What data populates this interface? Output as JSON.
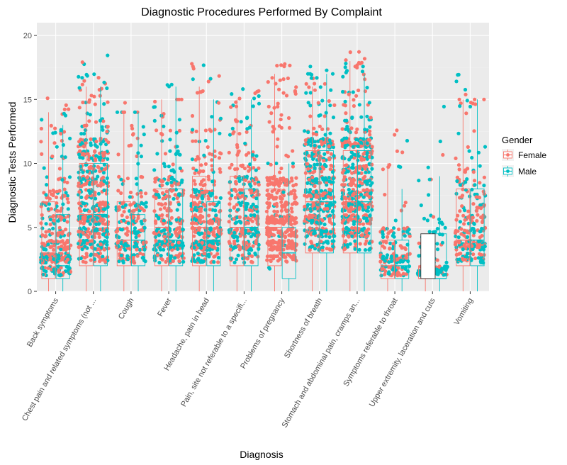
{
  "chart_data": {
    "type": "scatter",
    "subtype": "jittered points with boxplots",
    "title": "Diagnostic Procedures Performed By Complaint",
    "xlabel": "Diagnosis",
    "ylabel": "Diagnostic Tests Performed",
    "ylim": [
      0,
      21
    ],
    "yticks": [
      0,
      5,
      10,
      15,
      20
    ],
    "grid": true,
    "legend": {
      "title": "Gender",
      "placement": "right",
      "entries": [
        {
          "name": "Female",
          "color": "#F8766D"
        },
        {
          "name": "Male",
          "color": "#00BFC4"
        }
      ]
    },
    "categories": [
      "Back symptoms",
      "Chest pain and related symptoms (not ...",
      "Cough",
      "Fever",
      "Headache, pain in head",
      "Pain, site not referable to a specifi...",
      "Problems of pregnancy",
      "Shortness of breath",
      "Stomach and abdominal pain, cramps an...",
      "Symptoms referable to throat",
      "Upper extremity, laceration and cuts",
      "Vomiting"
    ],
    "series": [
      {
        "name": "Female",
        "color": "#F8766D",
        "box": [
          {
            "q1": 1,
            "median": 3,
            "q3": 7,
            "lo": 0,
            "hi": 14,
            "max": 16
          },
          {
            "q1": 2,
            "median": 6,
            "q3": 10,
            "lo": 0,
            "hi": 16,
            "max": 18
          },
          {
            "q1": 2,
            "median": 4,
            "q3": 7,
            "lo": 0,
            "hi": 14,
            "max": 14
          },
          {
            "q1": 2,
            "median": 5,
            "q3": 8,
            "lo": 0,
            "hi": 15,
            "max": 15
          },
          {
            "q1": 2,
            "median": 5,
            "q3": 9,
            "lo": 0,
            "hi": 16,
            "max": 18
          },
          {
            "q1": 2,
            "median": 5,
            "q3": 9,
            "lo": 0,
            "hi": 15,
            "max": 16
          },
          {
            "q1": 2,
            "median": 5,
            "q3": 8,
            "lo": 0,
            "hi": 17,
            "max": 18.3
          },
          {
            "q1": 3,
            "median": 7,
            "q3": 11,
            "lo": 0,
            "hi": 16,
            "max": 17
          },
          {
            "q1": 3,
            "median": 7,
            "q3": 11,
            "lo": 0,
            "hi": 18,
            "max": 19
          },
          {
            "q1": 1,
            "median": 2,
            "q3": 4,
            "lo": 0,
            "hi": 10,
            "max": 13
          },
          {
            "q1": 1,
            "median": 1,
            "q3": 2,
            "lo": 0,
            "hi": 4,
            "max": 13
          },
          {
            "q1": 2,
            "median": 4,
            "q3": 8,
            "lo": 0,
            "hi": 15,
            "max": 15
          }
        ]
      },
      {
        "name": "Male",
        "color": "#00BFC4",
        "box": [
          {
            "q1": 1,
            "median": 2,
            "q3": 6,
            "lo": 0,
            "hi": 13,
            "max": 16
          },
          {
            "q1": 2,
            "median": 6,
            "q3": 10,
            "lo": 0,
            "hi": 16,
            "max": 20.3
          },
          {
            "q1": 2,
            "median": 4,
            "q3": 6,
            "lo": 0,
            "hi": 14,
            "max": 14
          },
          {
            "q1": 2,
            "median": 4,
            "q3": 8,
            "lo": 0,
            "hi": 16,
            "max": 16.3
          },
          {
            "q1": 2,
            "median": 4,
            "q3": 7,
            "lo": 0,
            "hi": 15,
            "max": 18
          },
          {
            "q1": 2,
            "median": 5,
            "q3": 8,
            "lo": 0,
            "hi": 15,
            "max": 16
          },
          {
            "q1": 1,
            "median": 3,
            "q3": 5,
            "lo": 0,
            "hi": 10,
            "max": 10
          },
          {
            "q1": 3,
            "median": 7,
            "q3": 11,
            "lo": 0,
            "hi": 17,
            "max": 17
          },
          {
            "q1": 3,
            "median": 7,
            "q3": 11,
            "lo": 0,
            "hi": 17,
            "max": 18.5
          },
          {
            "q1": 1,
            "median": 2,
            "q3": 4,
            "lo": 0,
            "hi": 8,
            "max": 14
          },
          {
            "q1": 1,
            "median": 1,
            "q3": 4.5,
            "lo": 0,
            "hi": 9,
            "max": 16
          },
          {
            "q1": 2,
            "median": 4,
            "q3": 8,
            "lo": 0,
            "hi": 15,
            "max": 17
          }
        ]
      }
    ]
  }
}
